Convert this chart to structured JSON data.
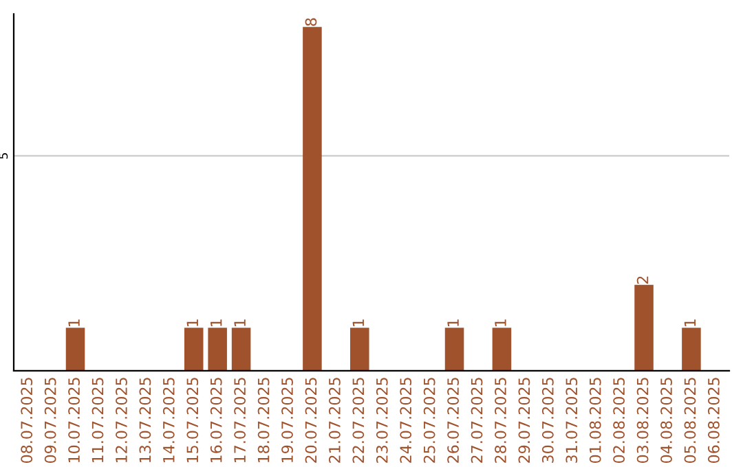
{
  "chart_data": {
    "type": "bar",
    "categories": [
      "08.07.2025",
      "09.07.2025",
      "10.07.2025",
      "11.07.2025",
      "12.07.2025",
      "13.07.2025",
      "14.07.2025",
      "15.07.2025",
      "16.07.2025",
      "17.07.2025",
      "18.07.2025",
      "19.07.2025",
      "20.07.2025",
      "21.07.2025",
      "22.07.2025",
      "23.07.2025",
      "24.07.2025",
      "25.07.2025",
      "26.07.2025",
      "27.07.2025",
      "28.07.2025",
      "29.07.2025",
      "30.07.2025",
      "31.07.2025",
      "01.08.2025",
      "02.08.2025",
      "03.08.2025",
      "04.08.2025",
      "05.08.2025",
      "06.08.2025"
    ],
    "values": [
      0,
      0,
      1,
      0,
      0,
      0,
      0,
      1,
      1,
      1,
      0,
      0,
      8,
      0,
      1,
      0,
      0,
      0,
      1,
      0,
      1,
      0,
      0,
      0,
      0,
      0,
      2,
      0,
      1,
      0
    ],
    "color": "#a0522d",
    "value_labels": [
      null,
      null,
      "1",
      null,
      null,
      null,
      null,
      "1",
      "1",
      "1",
      null,
      null,
      "8",
      null,
      "1",
      null,
      null,
      null,
      "1",
      null,
      "1",
      null,
      null,
      null,
      null,
      null,
      "2",
      null,
      "1",
      null
    ],
    "ylim": [
      0,
      8.3
    ],
    "yticks": [
      5
    ],
    "grid": "y"
  }
}
